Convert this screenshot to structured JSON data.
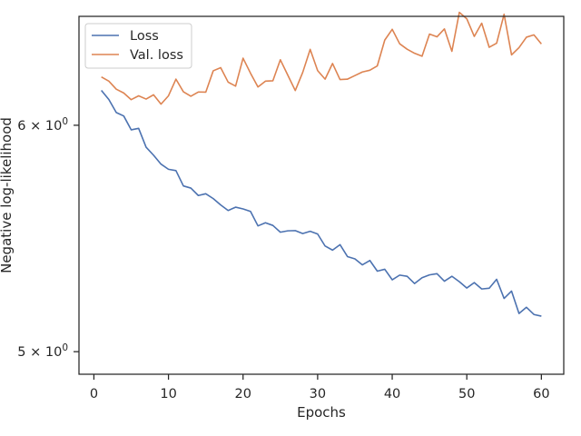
{
  "chart_data": {
    "type": "line",
    "xlabel": "Epochs",
    "ylabel": "Negative log-likelihood",
    "yscale": "log",
    "xlim": [
      -2,
      63
    ],
    "ylim": [
      4.91,
      6.55
    ],
    "grid": false,
    "legend_position": "top-left",
    "x_ticks": [
      0,
      10,
      20,
      30,
      40,
      50,
      60
    ],
    "y_ticks": [
      {
        "value": 6.0,
        "base": "6",
        "op": "×",
        "power_base": "10",
        "exponent": "0"
      },
      {
        "value": 5.0,
        "base": "5",
        "op": "×",
        "power_base": "10",
        "exponent": "0"
      }
    ],
    "x": [
      1,
      2,
      3,
      4,
      5,
      6,
      7,
      8,
      9,
      10,
      11,
      12,
      13,
      14,
      15,
      16,
      17,
      18,
      19,
      20,
      21,
      22,
      23,
      24,
      25,
      26,
      27,
      28,
      29,
      30,
      31,
      32,
      33,
      34,
      35,
      36,
      37,
      38,
      39,
      40,
      41,
      42,
      43,
      44,
      45,
      46,
      47,
      48,
      49,
      50,
      51,
      52,
      53,
      54,
      55,
      56,
      57,
      58,
      59,
      60
    ],
    "series": [
      {
        "name": "Loss",
        "color": "#4c72b0",
        "values": [
          6.171,
          6.126,
          6.062,
          6.045,
          5.978,
          5.985,
          5.895,
          5.857,
          5.815,
          5.791,
          5.785,
          5.714,
          5.704,
          5.67,
          5.678,
          5.656,
          5.627,
          5.602,
          5.617,
          5.609,
          5.598,
          5.533,
          5.547,
          5.535,
          5.505,
          5.511,
          5.512,
          5.499,
          5.509,
          5.497,
          5.444,
          5.426,
          5.45,
          5.398,
          5.388,
          5.362,
          5.381,
          5.335,
          5.343,
          5.298,
          5.318,
          5.313,
          5.282,
          5.307,
          5.319,
          5.324,
          5.292,
          5.313,
          5.29,
          5.263,
          5.286,
          5.259,
          5.262,
          5.3,
          5.219,
          5.25,
          5.156,
          5.182,
          5.152,
          5.145
        ]
      },
      {
        "name": "Val. loss",
        "color": "#dd8452",
        "values": [
          6.238,
          6.217,
          6.177,
          6.158,
          6.125,
          6.144,
          6.128,
          6.149,
          6.103,
          6.144,
          6.227,
          6.164,
          6.142,
          6.163,
          6.162,
          6.269,
          6.285,
          6.212,
          6.192,
          6.333,
          6.257,
          6.188,
          6.217,
          6.219,
          6.325,
          6.247,
          6.17,
          6.261,
          6.378,
          6.27,
          6.227,
          6.306,
          6.225,
          6.227,
          6.245,
          6.263,
          6.272,
          6.294,
          6.426,
          6.482,
          6.407,
          6.379,
          6.358,
          6.343,
          6.457,
          6.443,
          6.484,
          6.368,
          6.571,
          6.537,
          6.445,
          6.514,
          6.389,
          6.41,
          6.561,
          6.35,
          6.387,
          6.441,
          6.453,
          6.406
        ]
      }
    ]
  }
}
